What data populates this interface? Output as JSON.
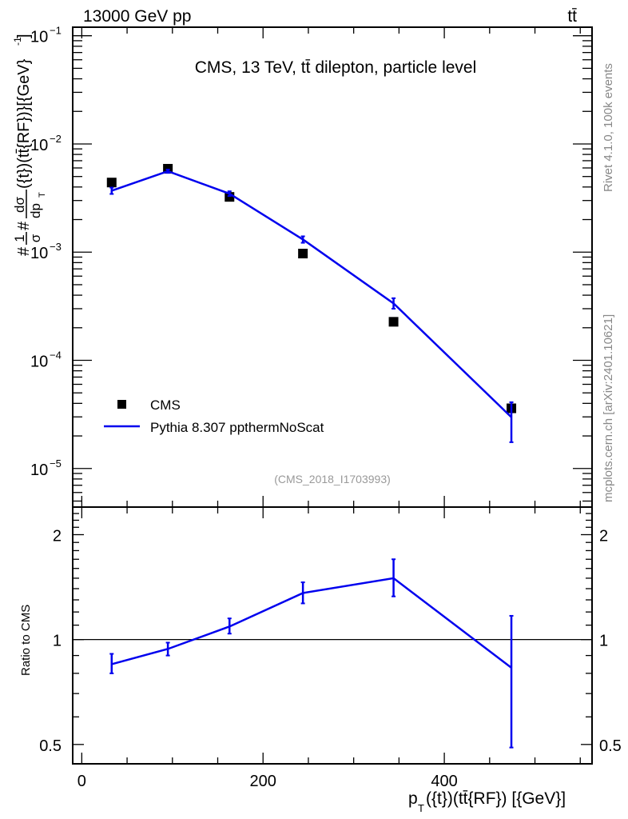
{
  "header": {
    "left": "13000 GeV pp",
    "right": "tt̄"
  },
  "side_text": {
    "rivet": "Rivet 4.1.0,  100k events",
    "mcplots": "mcplots.cern.ch [arXiv:2401.10621]"
  },
  "colors": {
    "data": "#000000",
    "mc": "#0000ee",
    "gray": "#888888"
  },
  "chart_data": [
    {
      "type": "scatter",
      "title": "CMS, 13 TeV, tt̄ dilepton, particle level",
      "analysis_label": "(CMS_2018_I1703993)",
      "ylabel": "#1/σ#dσ/dp_T({t})(tt̄{RF})}[{GeV}^-1]",
      "ylabel_parts": {
        "prefix": "#",
        "frac1_num": "1",
        "frac1_den": "σ",
        "mid": "#",
        "frac2_num": "dσ",
        "frac2_den": "dp",
        "sub": "T",
        "rest": "({t})(tt̄{RF})}[{GeV}",
        "sup": "-1",
        "close": "]"
      },
      "yscale": "log",
      "ylim": [
        4.4e-06,
        0.12
      ],
      "xlim": [
        -10,
        563
      ],
      "yticks": [
        {
          "v": 0.1,
          "label": "10",
          "exp": "−1"
        },
        {
          "v": 0.01,
          "label": "10",
          "exp": "−2"
        },
        {
          "v": 0.001,
          "label": "10",
          "exp": "−3"
        },
        {
          "v": 0.0001,
          "label": "10",
          "exp": "−4"
        },
        {
          "v": 1e-05,
          "label": "10",
          "exp": "−5"
        }
      ],
      "legend": {
        "placement": "bottom-left",
        "entries": [
          "CMS",
          "Pythia 8.307 ppthermNoScat"
        ]
      },
      "series": [
        {
          "name": "CMS",
          "style": "markers",
          "x": [
            33,
            95,
            163,
            244,
            344,
            474
          ],
          "y": [
            0.0044,
            0.0059,
            0.00324,
            0.00097,
            0.000227,
            3.6e-05
          ]
        },
        {
          "name": "Pythia 8.307 ppthermNoScat",
          "style": "line",
          "x": [
            33,
            95,
            163,
            244,
            344,
            474
          ],
          "y": [
            0.0037,
            0.0056,
            0.00347,
            0.00131,
            0.000336,
            2.98e-05
          ],
          "err_low": [
            0.00345,
            0.0054,
            0.0033,
            0.00122,
            0.0003,
            1.75e-05
          ],
          "err_high": [
            0.00395,
            0.0058,
            0.00365,
            0.0014,
            0.000375,
            4.1e-05
          ]
        }
      ]
    },
    {
      "type": "line",
      "ylabel": "Ratio to CMS",
      "xlabel": "p_T({t})(tt̄{RF}) [{GeV}]",
      "xlabel_parts": {
        "p": "p",
        "sub": "T",
        "rest": "({t})(tt̄{RF}) [{GeV}]"
      },
      "yscale": "log",
      "ylim": [
        0.44,
        2.4
      ],
      "xlim": [
        -10,
        563
      ],
      "xticks": [
        0,
        200,
        400
      ],
      "xtick_labels": [
        "0",
        "200",
        "400"
      ],
      "yticks": [
        0.5,
        1,
        2
      ],
      "ytick_labels": [
        "0.5",
        "1",
        "2"
      ],
      "reference_line": 1,
      "series": [
        {
          "name": "Pythia 8.307 ppthermNoScat",
          "x": [
            33,
            95,
            163,
            244,
            344,
            474
          ],
          "y": [
            0.85,
            0.94,
            1.09,
            1.36,
            1.5,
            0.83
          ],
          "err_low": [
            0.8,
            0.9,
            1.04,
            1.27,
            1.33,
            0.49
          ],
          "err_high": [
            0.91,
            0.98,
            1.15,
            1.46,
            1.7,
            1.17
          ]
        }
      ]
    }
  ]
}
